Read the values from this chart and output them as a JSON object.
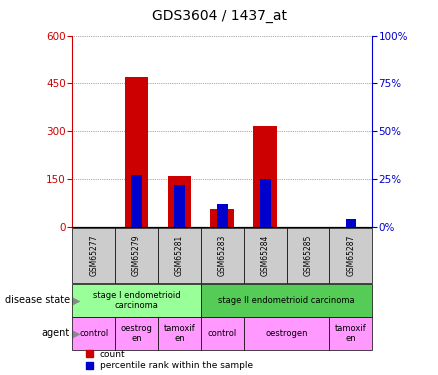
{
  "title": "GDS3604 / 1437_at",
  "samples": [
    "GSM65277",
    "GSM65279",
    "GSM65281",
    "GSM65283",
    "GSM65284",
    "GSM65285",
    "GSM65287"
  ],
  "count_values": [
    0,
    470,
    160,
    55,
    315,
    0,
    0
  ],
  "percentile_values": [
    0,
    27,
    22,
    12,
    25,
    0,
    4
  ],
  "ylim_left": [
    0,
    600
  ],
  "ylim_right": [
    0,
    100
  ],
  "yticks_left": [
    0,
    150,
    300,
    450,
    600
  ],
  "yticks_right": [
    0,
    25,
    50,
    75,
    100
  ],
  "left_color": "#cc0000",
  "right_color": "#0000cc",
  "bar_width": 0.55,
  "blue_bar_width": 0.25,
  "disease_state_row": [
    {
      "label": "stage I endometrioid\ncarcinoma",
      "span": [
        0,
        2
      ],
      "color": "#99ff99"
    },
    {
      "label": "stage II endometrioid carcinoma",
      "span": [
        3,
        6
      ],
      "color": "#55cc55"
    }
  ],
  "agent_row": [
    {
      "label": "control",
      "span": [
        0,
        0
      ],
      "color": "#ff99ff"
    },
    {
      "label": "oestrog\nen",
      "span": [
        1,
        1
      ],
      "color": "#ff99ff"
    },
    {
      "label": "tamoxif\nen",
      "span": [
        2,
        2
      ],
      "color": "#ff99ff"
    },
    {
      "label": "control",
      "span": [
        3,
        3
      ],
      "color": "#ff99ff"
    },
    {
      "label": "oestrogen",
      "span": [
        4,
        5
      ],
      "color": "#ff99ff"
    },
    {
      "label": "tamoxif\nen",
      "span": [
        6,
        6
      ],
      "color": "#ff99ff"
    }
  ],
  "bg_color": "#ffffff",
  "grid_color": "#555555",
  "sample_bg_color": "#cccccc"
}
